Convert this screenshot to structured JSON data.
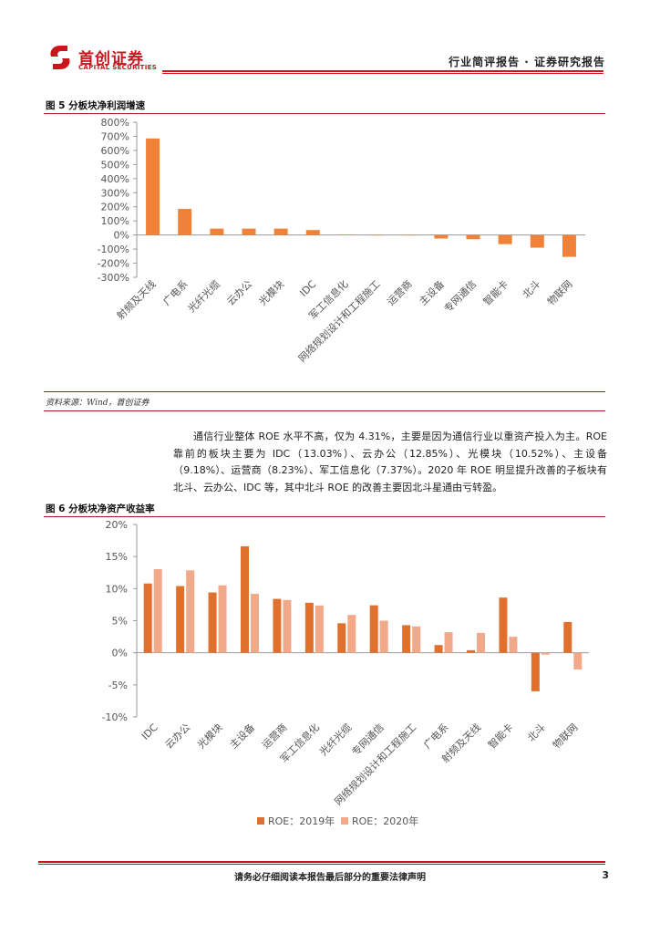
{
  "header": {
    "logo_cn": "首创证券",
    "logo_en": "CAPITAL SECURITIES",
    "report_type": "行业简评报告 · 证券研究报告"
  },
  "figure5": {
    "title": "图 5 分板块净利润增速",
    "source": "资料来源：Wind，首创证券"
  },
  "body_text": "通信行业整体 ROE 水平不高，仅为 4.31%，主要是因为通信行业以重资产投入为主。ROE 靠前的板块主要为 IDC（13.03%）、云办公（12.85%）、光模块（10.52%）、主设备（9.18%）、运营商（8.23%）、军工信息化（7.37%）。2020 年 ROE 明显提升改善的子板块有北斗、云办公、IDC 等，其中北斗 ROE 的改善主要因北斗星通由亏转盈。",
  "figure6": {
    "title": "图 6 分板块净资产收益率"
  },
  "footer": {
    "note": "请务必仔细阅读本报告最后部分的重要法律声明",
    "page": "3"
  },
  "colors": {
    "brand_red": "#c8161d",
    "bar_2019": "#e0702c",
    "bar_2020": "#f2a98a",
    "bar_fig5": "#ef8238"
  },
  "chart_data": [
    {
      "type": "bar",
      "categories": [
        "射频及天线",
        "广电系",
        "光纤光缆",
        "云办公",
        "光模块",
        "IDC",
        "军工信息化",
        "网络规划设计和工程施工",
        "运营商",
        "主设备",
        "专网通信",
        "智能卡",
        "北斗",
        "物联网"
      ],
      "values": [
        685,
        185,
        45,
        45,
        45,
        35,
        2,
        0,
        -3,
        -25,
        -30,
        -65,
        -90,
        -155
      ],
      "ylim": [
        -300,
        800
      ],
      "yticks": [
        "800%",
        "700%",
        "600%",
        "500%",
        "400%",
        "300%",
        "200%",
        "100%",
        "0%",
        "-100%",
        "-200%",
        "-300%"
      ],
      "ytick_values": [
        800,
        700,
        600,
        500,
        400,
        300,
        200,
        100,
        0,
        -100,
        -200,
        -300
      ]
    },
    {
      "type": "bar",
      "categories": [
        "IDC",
        "云办公",
        "光模块",
        "主设备",
        "运营商",
        "军工信息化",
        "光纤光缆",
        "专网通信",
        "网络规划设计和工程施工",
        "广电系",
        "射频及天线",
        "智能卡",
        "北斗",
        "物联网"
      ],
      "series": [
        {
          "name": "ROE：2019年",
          "values": [
            10.8,
            10.4,
            9.4,
            16.6,
            8.4,
            7.8,
            4.6,
            7.4,
            4.3,
            1.2,
            0.4,
            8.6,
            -6.0,
            4.8
          ]
        },
        {
          "name": "ROE：2020年",
          "values": [
            13.03,
            12.85,
            10.52,
            9.18,
            8.23,
            7.37,
            5.9,
            5.0,
            4.1,
            3.2,
            3.1,
            2.5,
            -0.3,
            -2.6
          ]
        }
      ],
      "ylim": [
        -10,
        20
      ],
      "yticks": [
        "20%",
        "15%",
        "10%",
        "5%",
        "0%",
        "-5%",
        "-10%"
      ],
      "ytick_values": [
        20,
        15,
        10,
        5,
        0,
        -5,
        -10
      ]
    }
  ]
}
